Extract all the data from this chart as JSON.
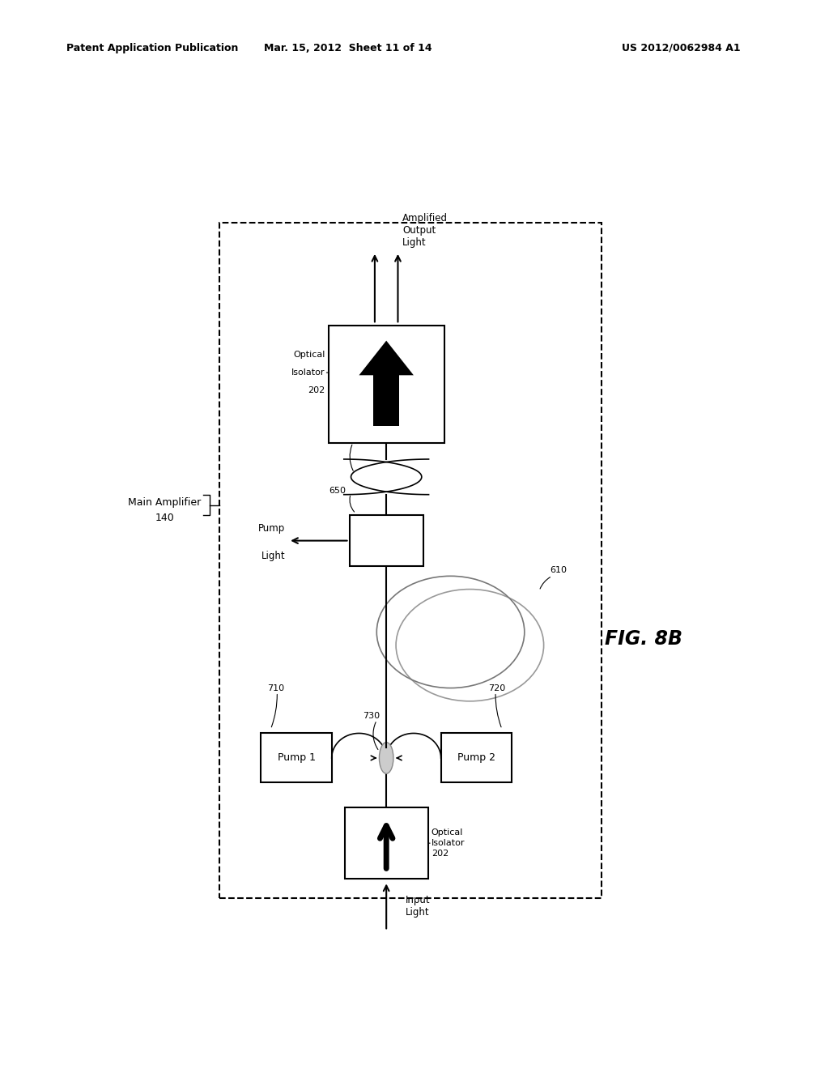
{
  "title_left": "Patent Application Publication",
  "title_mid": "Mar. 15, 2012  Sheet 11 of 14",
  "title_right": "US 2012/0062984 A1",
  "fig_label": "FIG. 8B",
  "background_color": "#ffffff"
}
